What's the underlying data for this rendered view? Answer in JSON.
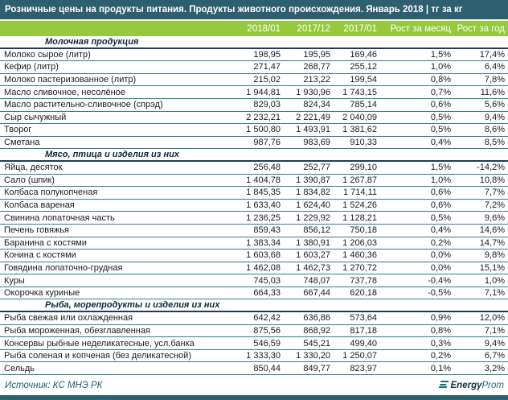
{
  "chart_data": {
    "type": "table",
    "title": "Розничные цены на продукты питания. Продукты животного происхождения. Январь 2018 | тг за кг",
    "columns": [
      "2018/01",
      "2017/12",
      "2017/01",
      "Рост за месяц",
      "Рост за год"
    ],
    "sections": [
      {
        "name": "Молочная продукция",
        "rows": [
          {
            "label": "Молоко сырое (литр)",
            "values": [
              "198,95",
              "195,95",
              "169,46",
              "1,5%",
              "17,4%"
            ]
          },
          {
            "label": "Кефир (литр)",
            "values": [
              "271,47",
              "268,77",
              "255,12",
              "1,0%",
              "6,4%"
            ]
          },
          {
            "label": "Молоко пастеризованное (литр)",
            "values": [
              "215,02",
              "213,22",
              "199,54",
              "0,8%",
              "7,8%"
            ]
          },
          {
            "label": "Масло сливочное, несолёное",
            "values": [
              "1 944,81",
              "1 930,96",
              "1 743,15",
              "0,7%",
              "11,6%"
            ]
          },
          {
            "label": "Масло растительно-сливочное (спрэд)",
            "values": [
              "829,03",
              "824,34",
              "785,14",
              "0,6%",
              "5,6%"
            ]
          },
          {
            "label": "Сыр сычужный",
            "values": [
              "2 232,21",
              "2 221,49",
              "2 040,09",
              "0,5%",
              "9,4%"
            ]
          },
          {
            "label": "Творог",
            "values": [
              "1 500,80",
              "1 493,91",
              "1 381,62",
              "0,5%",
              "8,6%"
            ]
          },
          {
            "label": "Сметана",
            "values": [
              "987,76",
              "983,69",
              "910,33",
              "0,4%",
              "8,5%"
            ]
          }
        ]
      },
      {
        "name": "Мясо, птица и изделия из них",
        "rows": [
          {
            "label": "Яйца, десяток",
            "values": [
              "256,48",
              "252,77",
              "299,10",
              "1,5%",
              "-14,2%"
            ]
          },
          {
            "label": "Сало (шпик)",
            "values": [
              "1 404,78",
              "1 390,87",
              "1 267,87",
              "1,0%",
              "10,8%"
            ]
          },
          {
            "label": "Колбаса полукопченая",
            "values": [
              "1 845,35",
              "1 834,82",
              "1 714,11",
              "0,6%",
              "7,7%"
            ]
          },
          {
            "label": "Колбаса вареная",
            "values": [
              "1 633,40",
              "1 624,40",
              "1 524,26",
              "0,6%",
              "7,2%"
            ]
          },
          {
            "label": "Свинина лопаточная часть",
            "values": [
              "1 236,25",
              "1 229,92",
              "1 128,21",
              "0,5%",
              "9,6%"
            ]
          },
          {
            "label": "Печень говяжья",
            "values": [
              "859,43",
              "856,12",
              "750,18",
              "0,4%",
              "14,6%"
            ]
          },
          {
            "label": "Баранина с костями",
            "values": [
              "1 383,34",
              "1 380,91",
              "1 206,03",
              "0,2%",
              "14,7%"
            ]
          },
          {
            "label": "Конина с костями",
            "values": [
              "1 603,68",
              "1 603,27",
              "1 460,36",
              "0,0%",
              "9,8%"
            ]
          },
          {
            "label": "Говядина лопаточно-грудная",
            "values": [
              "1 462,08",
              "1 462,73",
              "1 270,72",
              "0,0%",
              "15,1%"
            ]
          },
          {
            "label": "Куры",
            "values": [
              "745,03",
              "748,07",
              "737,78",
              "-0,4%",
              "1,0%"
            ]
          },
          {
            "label": "Окорочка куриные",
            "values": [
              "664,33",
              "667,44",
              "620,18",
              "-0,5%",
              "7,1%"
            ]
          }
        ]
      },
      {
        "name": "Рыба, морепродукты и изделия из них",
        "rows": [
          {
            "label": "Рыба свежая или охлажденная",
            "values": [
              "642,42",
              "636,86",
              "573,64",
              "0,9%",
              "12,0%"
            ]
          },
          {
            "label": "Рыба мороженная, обезглавленная",
            "values": [
              "875,56",
              "868,92",
              "817,18",
              "0,8%",
              "7,1%"
            ]
          },
          {
            "label": "Консервы рыбные неделикатесные, усл.банка",
            "values": [
              "546,59",
              "545,21",
              "499,40",
              "0,3%",
              "9,4%"
            ]
          },
          {
            "label": "Рыба соленая и копченая (без деликатесной)",
            "values": [
              "1 333,30",
              "1 330,20",
              "1 250,07",
              "0,2%",
              "6,7%"
            ]
          },
          {
            "label": "Сельдь",
            "values": [
              "850,44",
              "849,77",
              "823,97",
              "0,1%",
              "3,2%"
            ]
          }
        ]
      }
    ]
  },
  "footer": {
    "source": "Источник: КС МНЭ РК",
    "logo": {
      "energy": "Energy",
      "prom": "Prom"
    }
  },
  "colors": {
    "title_bg": "#2E5F6E",
    "title_text": "#FFFFFF",
    "header_bg": "#97C93E",
    "header_text": "#FFFFFF",
    "row_line": "#2E7D8F",
    "section_line": "#1F3864",
    "section_text": "#10243E",
    "text": "#1A1A1A",
    "source_text": "#1C5E70",
    "brand_teal": "#1D6A80",
    "logo_dark": "#14303C"
  }
}
